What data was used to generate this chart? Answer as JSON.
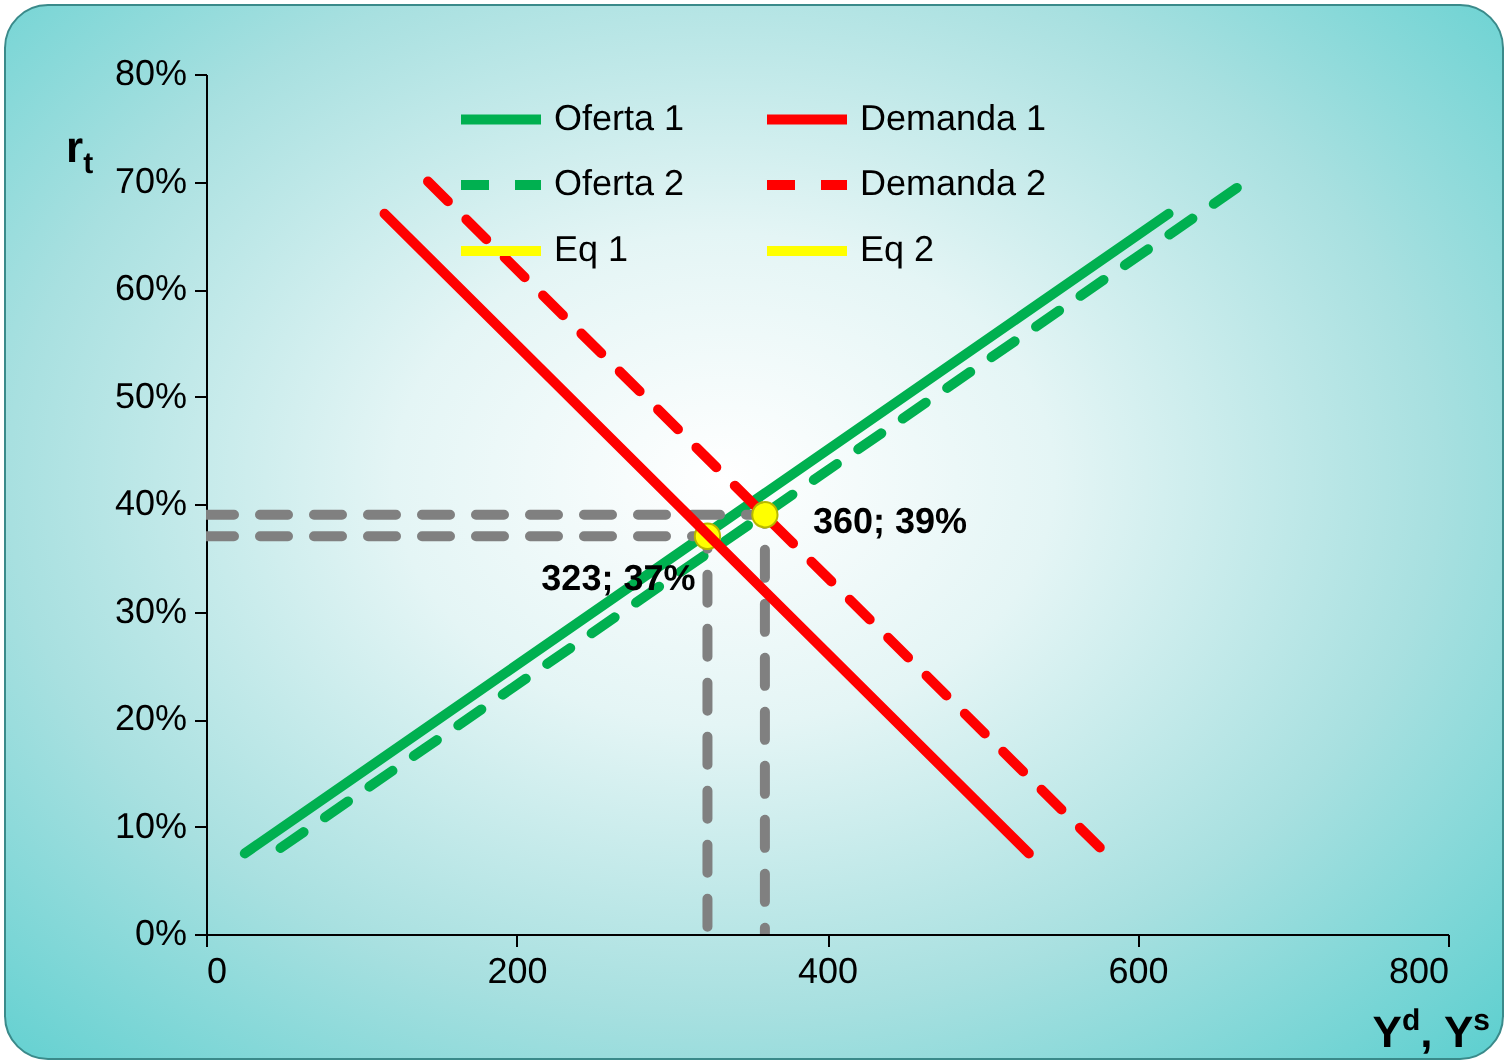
{
  "chart_data": {
    "type": "line",
    "xlabel": "Y$^{d}$, Y$^{s}$",
    "ylabel": "r$_{t}$",
    "xlim": [
      0,
      800
    ],
    "xticks": [
      0,
      200,
      400,
      600,
      800
    ],
    "ylim": [
      0,
      80
    ],
    "yticks": [
      {
        "value": 0,
        "label": "0%"
      },
      {
        "value": 10,
        "label": "10%"
      },
      {
        "value": 20,
        "label": "20%"
      },
      {
        "value": 30,
        "label": "30%"
      },
      {
        "value": 40,
        "label": "40%"
      },
      {
        "value": 50,
        "label": "50%"
      },
      {
        "value": 60,
        "label": "60%"
      },
      {
        "value": 70,
        "label": "70%"
      },
      {
        "value": 80,
        "label": "80%"
      }
    ],
    "series": [
      {
        "name": "Oferta 1",
        "color": "#00b050",
        "x": [
          25,
          620
        ],
        "values": [
          7.5,
          67
        ],
        "line_style": "solid"
      },
      {
        "name": "Oferta 2",
        "color": "#00b050",
        "x": [
          48,
          670
        ],
        "values": [
          8,
          70
        ],
        "line_style": "dashed"
      },
      {
        "color": "#808080",
        "x": [
          0,
          323,
          323
        ],
        "values": [
          37,
          37,
          0
        ],
        "line_style": "dashed"
      },
      {
        "color": "#808080",
        "x": [
          0,
          360,
          360
        ],
        "values": [
          39,
          39,
          0
        ],
        "line_style": "dashed"
      },
      {
        "name": "Eq 1",
        "type": "scatter",
        "color": "#ffff00",
        "x": [
          323
        ],
        "values": [
          37
        ],
        "marker": "circle"
      },
      {
        "name": "Demanda 1",
        "color": "#ff0000",
        "x": [
          115,
          530
        ],
        "values": [
          67,
          7.5
        ],
        "line_style": "solid"
      },
      {
        "name": "Demanda 2",
        "color": "#ff0000",
        "x": [
          143,
          576
        ],
        "values": [
          70,
          8
        ],
        "line_style": "dashed"
      },
      {
        "name": "Eq 2",
        "type": "scatter",
        "color": "#ffff00",
        "x": [
          360
        ],
        "values": [
          39
        ],
        "marker": "circle"
      }
    ],
    "annotations": [
      {
        "text": "323; 37%",
        "x": 323,
        "y": 37
      },
      {
        "text": "360; 39%",
        "x": 360,
        "y": 39
      }
    ],
    "legend": "top",
    "grid": false
  }
}
